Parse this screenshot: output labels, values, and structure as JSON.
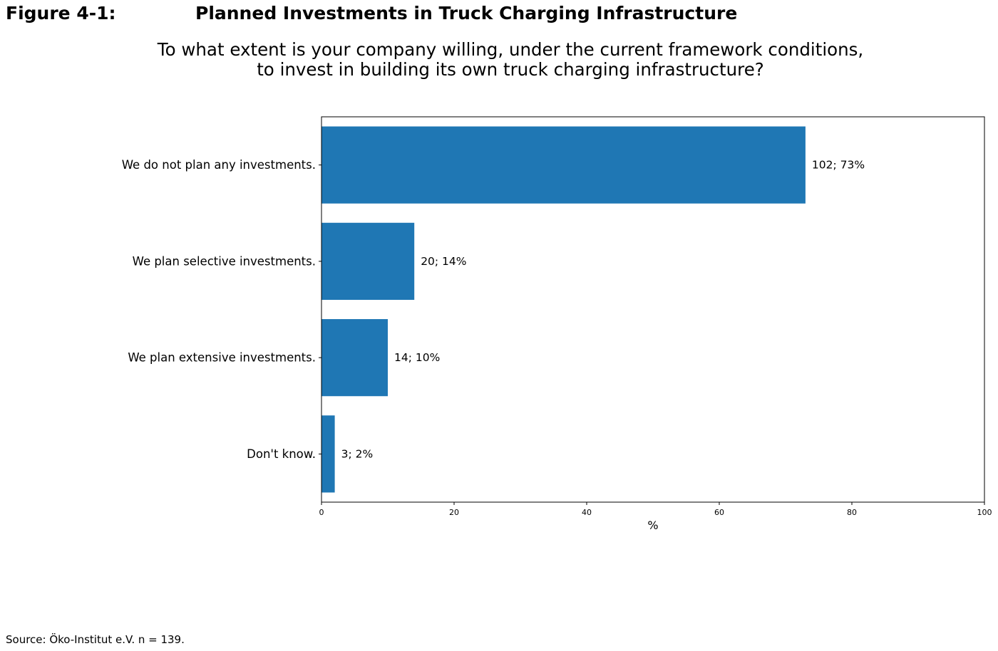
{
  "figure": {
    "label": "Figure 4-1:",
    "title": "Planned Investments in Truck Charging Infrastructure"
  },
  "question": {
    "line1": "To what extent is your company willing, under the current framework conditions,",
    "line2": "to invest in building its own truck charging infrastructure?"
  },
  "source": "Source: Öko-Institut e.V. n = 139.",
  "chart_data": {
    "type": "bar",
    "orientation": "horizontal",
    "categories": [
      "We do not plan any investments.",
      "We plan selective investments.",
      "We plan extensive investments.",
      "Don't know."
    ],
    "values": [
      73,
      14,
      10,
      2
    ],
    "counts": [
      102,
      20,
      14,
      3
    ],
    "data_labels": [
      "102; 73%",
      "20; 14%",
      "14; 10%",
      "3; 2%"
    ],
    "xlabel": "%",
    "xlim": [
      0,
      100
    ],
    "xticks": [
      0,
      20,
      40,
      60,
      80,
      100
    ],
    "bar_color": "#1f77b4",
    "grid": false
  }
}
